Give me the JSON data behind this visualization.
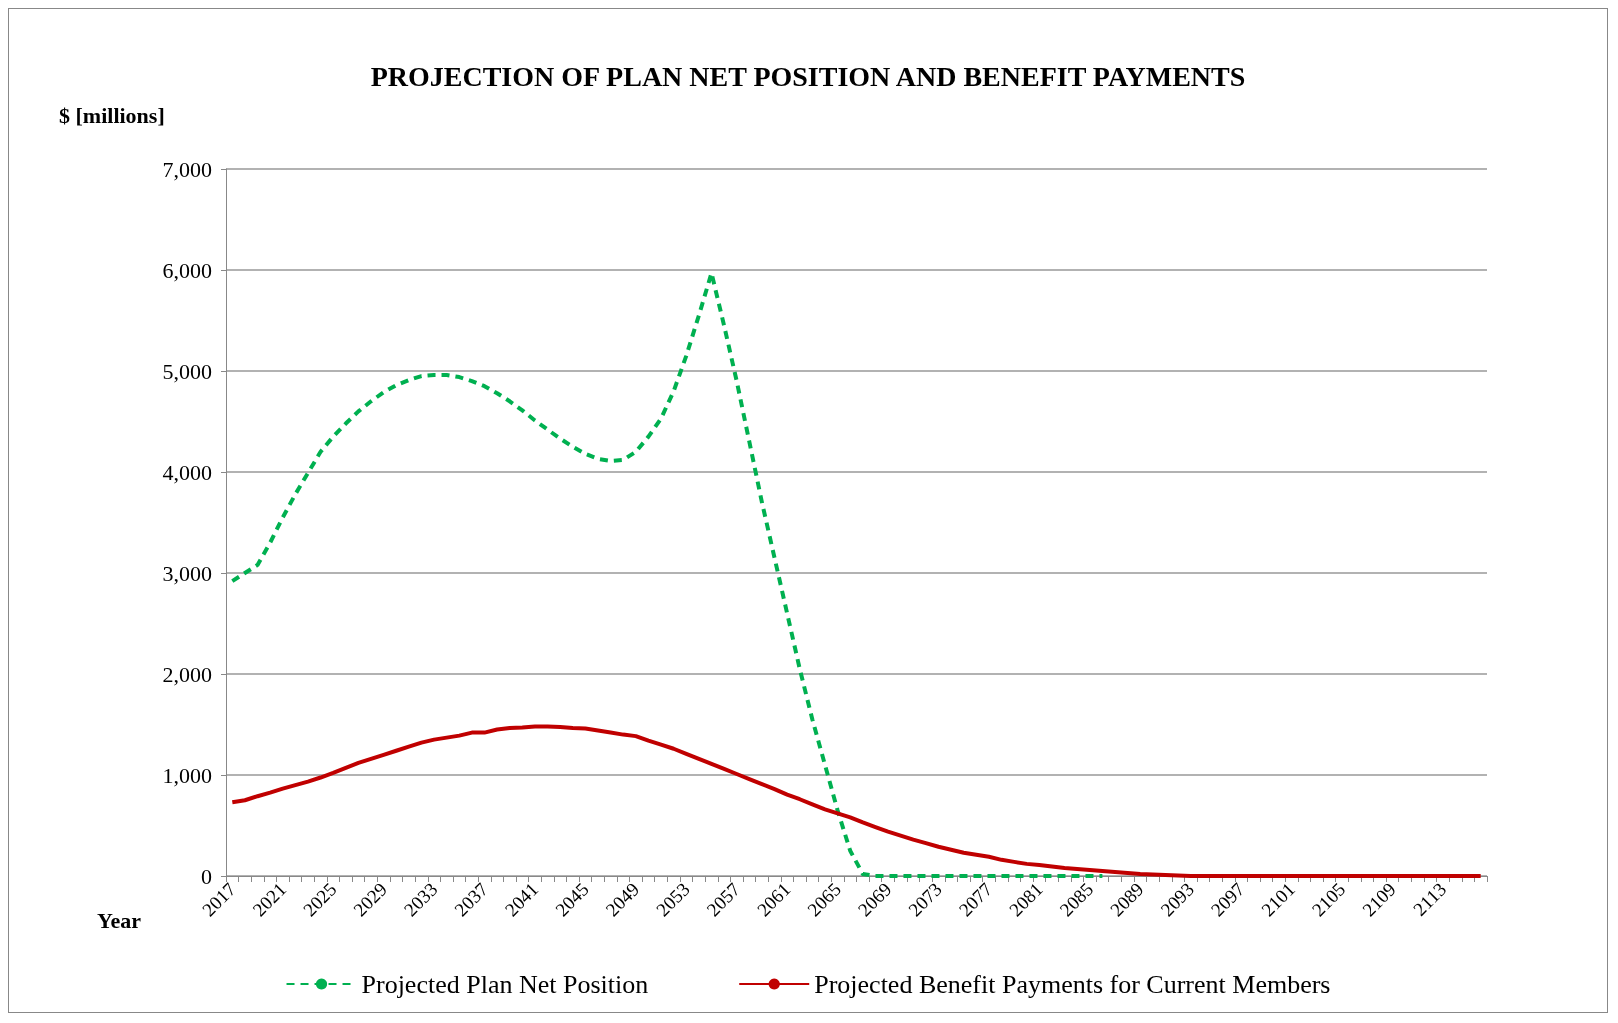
{
  "chart_data": {
    "type": "line",
    "title": "PROJECTION OF PLAN NET POSITION AND BENEFIT PAYMENTS",
    "ylabel": "$ [millions]",
    "xlabel": "Year",
    "categories": [
      "2017",
      null,
      null,
      null,
      "2021",
      null,
      null,
      null,
      "2025",
      null,
      null,
      null,
      "2029",
      null,
      null,
      null,
      "2033",
      null,
      null,
      null,
      "2037",
      null,
      null,
      null,
      "2041",
      null,
      null,
      null,
      "2045",
      null,
      null,
      null,
      "2049",
      null,
      null,
      null,
      "2053",
      null,
      null,
      null,
      "2057",
      null,
      null,
      null,
      "2061",
      null,
      null,
      null,
      "2065",
      null,
      null,
      null,
      "2069",
      null,
      null,
      null,
      "2073",
      null,
      null,
      null,
      "2077",
      null,
      null,
      null,
      "2081",
      null,
      null,
      null,
      "2085",
      null,
      null,
      null,
      "2089",
      null,
      null,
      null,
      "2093",
      null,
      null,
      null,
      "2097",
      null,
      null,
      null,
      "2101",
      null,
      null,
      null,
      "2105",
      null,
      null,
      null,
      "2109",
      null,
      null,
      null,
      "2113",
      null,
      null,
      null
    ],
    "series": [
      {
        "name": "Projected Plan Net Position",
        "color": "#00b050",
        "line_style": "dashed",
        "values": [
          2920,
          3000,
          3080,
          3300,
          3550,
          3780,
          3990,
          4200,
          4350,
          4480,
          4600,
          4700,
          4790,
          4860,
          4910,
          4950,
          4960,
          4960,
          4940,
          4900,
          4850,
          4780,
          4700,
          4610,
          4510,
          4420,
          4330,
          4250,
          4180,
          4130,
          4110,
          4120,
          4200,
          4350,
          4530,
          4800,
          5150,
          5550,
          5970,
          5450,
          4900,
          4300,
          3700,
          3150,
          2600,
          2050,
          1550,
          1100,
          650,
          250,
          20,
          0,
          0,
          0,
          0,
          0,
          0,
          0,
          0,
          0,
          0,
          0,
          0,
          0,
          0,
          0,
          0,
          0,
          0,
          0,
          null,
          null,
          null,
          null,
          null,
          null,
          null,
          null,
          null,
          null,
          null,
          null,
          null,
          null,
          null,
          null,
          null,
          null,
          null,
          null,
          null,
          null,
          null,
          null,
          null,
          null,
          null,
          null,
          null,
          null
        ]
      },
      {
        "name": "Projected Benefit Payments for Current Members",
        "color": "#c00000",
        "line_style": "solid",
        "values": [
          730,
          750,
          790,
          825,
          865,
          900,
          935,
          975,
          1020,
          1070,
          1120,
          1160,
          1200,
          1240,
          1280,
          1320,
          1350,
          1370,
          1390,
          1420,
          1420,
          1450,
          1465,
          1470,
          1480,
          1480,
          1475,
          1465,
          1460,
          1440,
          1420,
          1400,
          1385,
          1340,
          1300,
          1260,
          1210,
          1160,
          1110,
          1060,
          1010,
          960,
          910,
          860,
          805,
          760,
          710,
          660,
          620,
          580,
          530,
          485,
          440,
          400,
          360,
          325,
          290,
          260,
          230,
          210,
          190,
          160,
          140,
          120,
          110,
          95,
          80,
          70,
          60,
          50,
          40,
          30,
          20,
          15,
          10,
          5,
          0,
          0,
          0,
          0,
          0,
          0,
          0,
          0,
          0,
          0,
          0,
          0,
          0,
          0,
          0,
          0,
          0,
          0,
          0,
          0,
          0,
          0,
          0,
          0
        ]
      }
    ],
    "ylim": [
      0,
      7000
    ],
    "yticks": [
      {
        "value": 0,
        "label": "0"
      },
      {
        "value": 1000,
        "label": "1,000"
      },
      {
        "value": 2000,
        "label": "2,000"
      },
      {
        "value": 3000,
        "label": "3,000"
      },
      {
        "value": 4000,
        "label": "4,000"
      },
      {
        "value": 5000,
        "label": "5,000"
      },
      {
        "value": 6000,
        "label": "6,000"
      },
      {
        "value": 7000,
        "label": "7,000"
      }
    ],
    "grid": "y",
    "legend": "bottom",
    "marker": "none"
  }
}
